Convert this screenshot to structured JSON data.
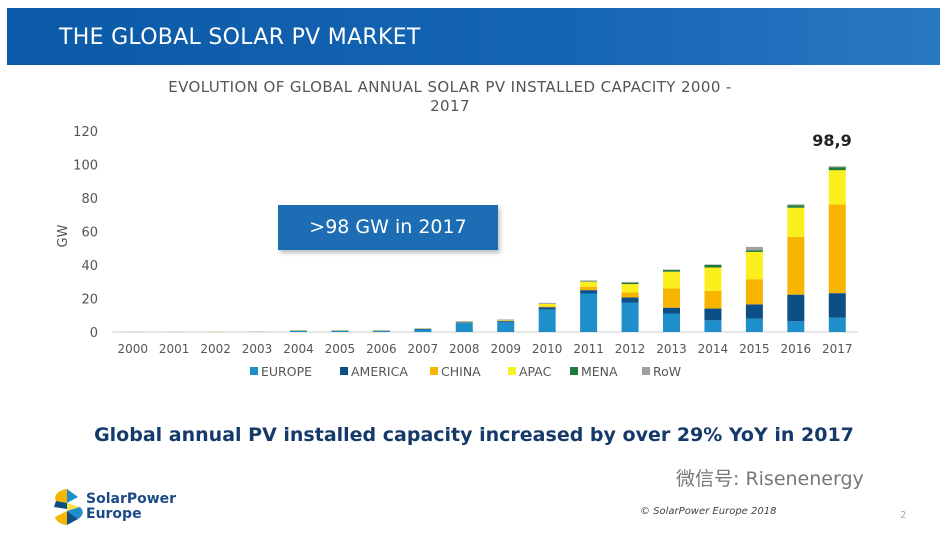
{
  "header": {
    "title": "THE GLOBAL SOLAR PV MARKET"
  },
  "callout": ">98 GW in 2017",
  "headline": "Global annual PV installed capacity increased by over 29% YoY in 2017",
  "footer": {
    "logo_text_line1": "SolarPower",
    "logo_text_line2": "Europe",
    "copyright": "© SolarPower Europe 2018",
    "watermark": "微信号: Risenenergy",
    "page_number": "2"
  },
  "chart_data": {
    "type": "bar",
    "stacked": true,
    "title": "EVOLUTION OF GLOBAL ANNUAL SOLAR PV INSTALLED CAPACITY 2000 - 2017",
    "title_line1": "EVOLUTION OF GLOBAL ANNUAL SOLAR PV INSTALLED CAPACITY 2000 -",
    "title_line2": "2017",
    "ylabel": "GW",
    "xlabel": "",
    "ylim": [
      0,
      120
    ],
    "yticks": [
      0,
      20,
      40,
      60,
      80,
      100,
      120
    ],
    "grid": false,
    "legend_position": "bottom",
    "annotation": "98,9",
    "categories": [
      "2000",
      "2001",
      "2002",
      "2003",
      "2004",
      "2005",
      "2006",
      "2007",
      "2008",
      "2009",
      "2010",
      "2011",
      "2012",
      "2013",
      "2014",
      "2015",
      "2016",
      "2017"
    ],
    "series": [
      {
        "name": "EUROPE",
        "color": "#1f8fcc",
        "values": [
          0.1,
          0.1,
          0.1,
          0.2,
          0.7,
          0.7,
          0.7,
          1.5,
          5.3,
          5.8,
          13.5,
          23,
          17.6,
          11,
          7,
          8,
          6.4,
          8.6
        ]
      },
      {
        "name": "AMERICA",
        "color": "#0b4f86",
        "values": [
          0,
          0,
          0,
          0,
          0.1,
          0.1,
          0.1,
          0.3,
          0.5,
          0.7,
          1.3,
          2,
          3,
          3.5,
          7,
          8.5,
          15.9,
          14.6
        ]
      },
      {
        "name": "CHINA",
        "color": "#f7b500",
        "values": [
          0,
          0,
          0,
          0,
          0,
          0,
          0,
          0,
          0,
          0,
          0.5,
          2,
          3,
          11.5,
          10.6,
          15,
          34.5,
          53
        ]
      },
      {
        "name": "APAC",
        "color": "#fbf01e",
        "values": [
          0.1,
          0.1,
          0.1,
          0.1,
          0.2,
          0.2,
          0.2,
          0.2,
          0.3,
          0.4,
          1.5,
          3,
          5,
          10,
          13.9,
          16.3,
          17.4,
          20.4
        ]
      },
      {
        "name": "MENA",
        "color": "#1e7b3a",
        "values": [
          0,
          0,
          0,
          0,
          0,
          0,
          0,
          0,
          0,
          0,
          0.1,
          0.3,
          0.8,
          1,
          1.5,
          1,
          1.5,
          1.8
        ]
      },
      {
        "name": "RoW",
        "color": "#a0a0a0",
        "values": [
          0,
          0,
          0,
          0,
          0.2,
          0.2,
          0.2,
          0.3,
          0.4,
          0.6,
          0.5,
          0.5,
          0.5,
          0.3,
          0.3,
          2,
          0.5,
          0.5
        ]
      }
    ]
  }
}
